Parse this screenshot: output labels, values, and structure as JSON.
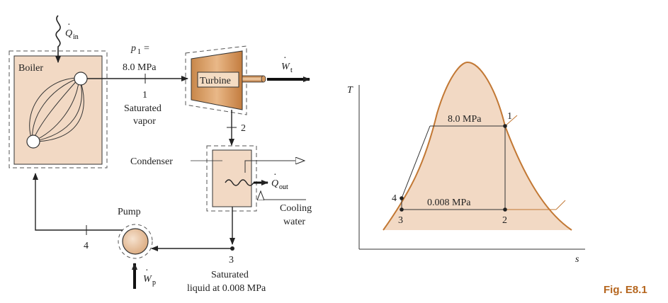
{
  "colors": {
    "equipment_fill": "#f2d9c4",
    "turbine_fill": "#d39a5f",
    "dome_line": "#c27834",
    "line": "#333333",
    "fig_label": "#b5651d"
  },
  "schematic": {
    "q_in_dot": "Q",
    "q_in_sub": "in",
    "boiler_label": "Boiler",
    "p1_sym": "p",
    "p1_sub": "1",
    "p1_eq": "=",
    "p1_value": "8.0 MPa",
    "state1_num": "1",
    "state1_desc_line1": "Saturated",
    "state1_desc_line2": "vapor",
    "turbine_label": "Turbine",
    "w_t_sym": "W",
    "w_t_sub": "t",
    "state2_num": "2",
    "condenser_label": "Condenser",
    "q_out_sym": "Q",
    "q_out_sub": "out",
    "cooling_line1": "Cooling",
    "cooling_line2": "water",
    "pump_label": "Pump",
    "state4_num": "4",
    "state3_num": "3",
    "state3_desc_line1": "Saturated",
    "state3_desc_line2": "liquid at 0.008 MPa",
    "w_p_sym": "W",
    "w_p_sub": "p"
  },
  "ts_diagram": {
    "t_axis_label": "T",
    "s_axis_label": "s",
    "p_high": "8.0 MPa",
    "p_low": "0.008 MPa",
    "state1": "1",
    "state2": "2",
    "state3": "3",
    "state4": "4"
  },
  "figure_label": "Fig. E8.1"
}
